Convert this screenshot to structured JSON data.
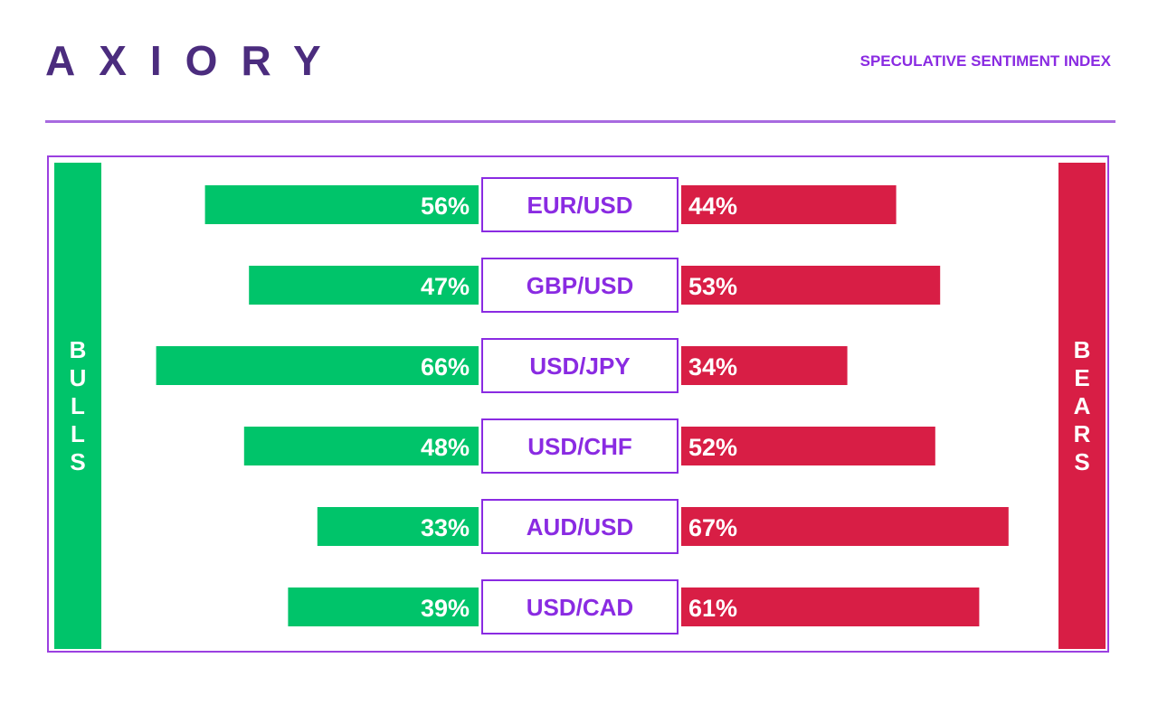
{
  "header": {
    "logo": "AXIORY",
    "title": "SPECULATIVE SENTIMENT INDEX"
  },
  "colors": {
    "bull": "#00c46a",
    "bear": "#d81e45",
    "accent": "#8a2be2",
    "logo": "#4b2c7e"
  },
  "sides": {
    "bulls_label": "BULLS",
    "bears_label": "BEARS"
  },
  "chart_data": {
    "type": "bar",
    "categories": [
      "EUR/USD",
      "GBP/USD",
      "USD/JPY",
      "USD/CHF",
      "AUD/USD",
      "USD/CAD"
    ],
    "series": [
      {
        "name": "BULLS",
        "values": [
          56,
          47,
          66,
          48,
          33,
          39
        ]
      },
      {
        "name": "BEARS",
        "values": [
          44,
          53,
          34,
          52,
          67,
          61
        ]
      }
    ],
    "value_labels": {
      "bulls": [
        "56%",
        "47%",
        "66%",
        "48%",
        "33%",
        "39%"
      ],
      "bears": [
        "44%",
        "53%",
        "34%",
        "52%",
        "67%",
        "61%"
      ]
    },
    "ylim": [
      0,
      100
    ]
  }
}
